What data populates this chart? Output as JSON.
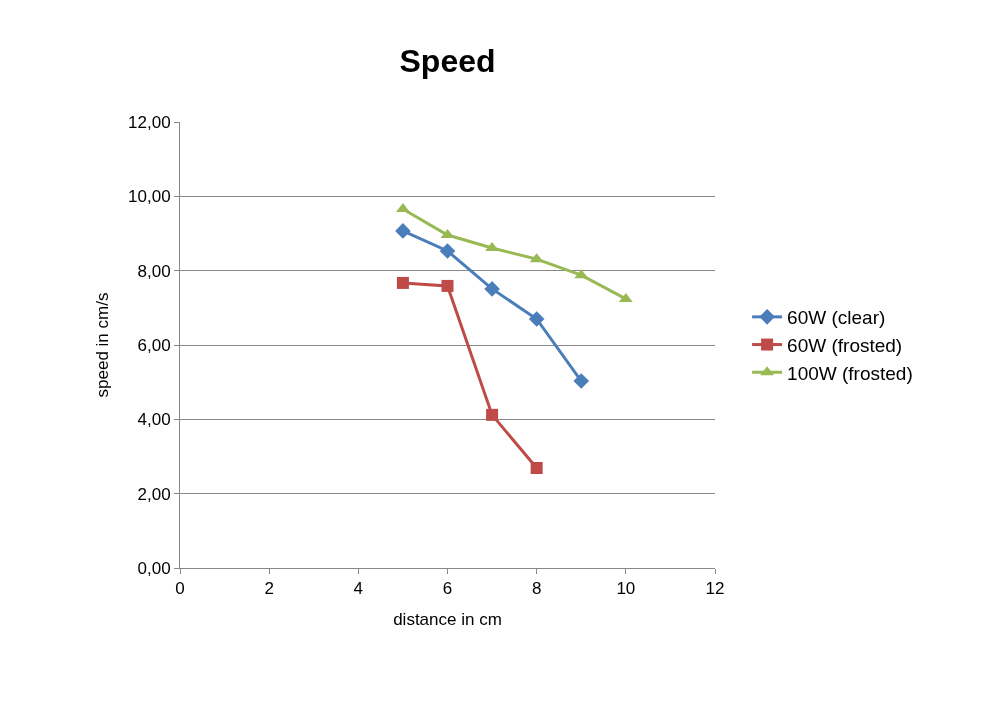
{
  "chart_data": {
    "type": "line",
    "title": "Speed",
    "xlabel": "distance in cm",
    "ylabel": "speed in cm/s",
    "xlim": [
      0,
      12
    ],
    "xticks": [
      0,
      2,
      4,
      6,
      8,
      10,
      12
    ],
    "ylim": [
      0,
      12
    ],
    "yticks": [
      {
        "value": 0,
        "label": "0,00"
      },
      {
        "value": 2,
        "label": "2,00"
      },
      {
        "value": 4,
        "label": "4,00"
      },
      {
        "value": 6,
        "label": "6,00"
      },
      {
        "value": 8,
        "label": "8,00"
      },
      {
        "value": 10,
        "label": "10,00"
      },
      {
        "value": 12,
        "label": "12,00"
      }
    ],
    "grid": "y",
    "legend": "right",
    "line_style": "solid",
    "series": [
      {
        "name": "60W (clear)",
        "color": "#4a7ebb",
        "marker": "diamond",
        "x": [
          5,
          6,
          7,
          8,
          9
        ],
        "values": [
          9.07,
          8.53,
          7.51,
          6.7,
          5.03
        ]
      },
      {
        "name": "60W (frosted)",
        "color": "#be4b48",
        "marker": "square",
        "x": [
          5,
          6,
          7,
          8
        ],
        "values": [
          7.67,
          7.59,
          4.12,
          2.69
        ]
      },
      {
        "name": "100W (frosted)",
        "color": "#98b954",
        "marker": "triangle",
        "x": [
          5,
          6,
          7,
          8,
          9,
          10
        ],
        "values": [
          9.66,
          8.96,
          8.61,
          8.31,
          7.88,
          7.24
        ]
      }
    ]
  }
}
